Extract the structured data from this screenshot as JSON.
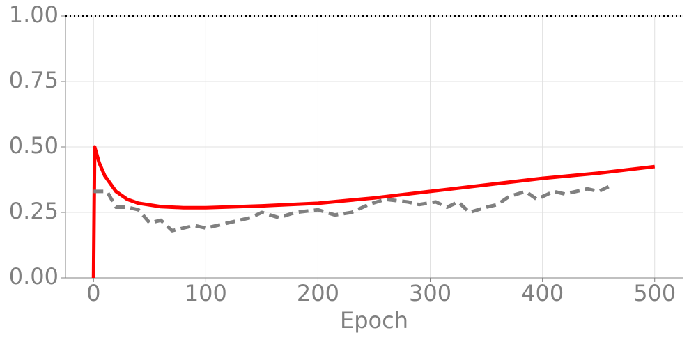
{
  "chart_data": {
    "type": "line",
    "x_label": "Epoch",
    "xlim": [
      -25,
      525
    ],
    "ylim": [
      0,
      1
    ],
    "xticks": [
      0,
      100,
      200,
      300,
      400,
      500
    ],
    "yticks": [
      {
        "value": 0,
        "label": "0.00"
      },
      {
        "value": 0.25,
        "label": "0.25"
      },
      {
        "value": 0.5,
        "label": "0.50"
      },
      {
        "value": 0.75,
        "label": "0.75"
      },
      {
        "value": 1,
        "label": "1.00"
      }
    ],
    "grid": true,
    "hline": 1,
    "series": [
      {
        "color": "#ff0000",
        "dash": false,
        "x": [
          0,
          1,
          5,
          10,
          20,
          30,
          40,
          60,
          80,
          100,
          150,
          200,
          250,
          300,
          350,
          400,
          450,
          500
        ],
        "values": [
          0,
          0.5,
          0.44,
          0.39,
          0.33,
          0.3,
          0.285,
          0.272,
          0.268,
          0.268,
          0.275,
          0.285,
          0.305,
          0.33,
          0.355,
          0.38,
          0.4,
          0.425
        ]
      },
      {
        "color": "#808080",
        "dash": true,
        "x": [
          0,
          12,
          20,
          30,
          40,
          50,
          60,
          70,
          80,
          90,
          100,
          120,
          140,
          150,
          165,
          180,
          200,
          215,
          230,
          245,
          260,
          280,
          290,
          305,
          315,
          325,
          335,
          350,
          360,
          370,
          385,
          395,
          410,
          420,
          440,
          450,
          460
        ],
        "values": [
          0.33,
          0.33,
          0.27,
          0.27,
          0.26,
          0.21,
          0.22,
          0.18,
          0.19,
          0.2,
          0.19,
          0.21,
          0.23,
          0.25,
          0.23,
          0.25,
          0.26,
          0.24,
          0.25,
          0.28,
          0.3,
          0.29,
          0.28,
          0.29,
          0.27,
          0.29,
          0.25,
          0.27,
          0.28,
          0.31,
          0.33,
          0.3,
          0.33,
          0.32,
          0.34,
          0.33,
          0.35
        ]
      }
    ]
  }
}
